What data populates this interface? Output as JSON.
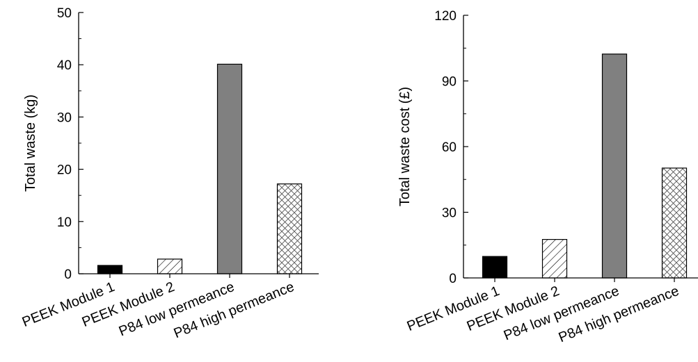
{
  "chart_data": [
    {
      "type": "bar",
      "categories": [
        "PEEK Module 1",
        "PEEK Module 2",
        "P84 low permeance",
        "P84 high permeance"
      ],
      "values": [
        1.6,
        2.8,
        40.1,
        17.2
      ],
      "ylabel": "Total waste (kg)",
      "xlabel": "",
      "ylim": [
        0,
        50
      ],
      "yticks": [
        0,
        10,
        20,
        30,
        40,
        50
      ],
      "grid": false,
      "bar_styles": [
        "solid-black",
        "diagonal-hatch",
        "solid-gray",
        "crosshatch"
      ]
    },
    {
      "type": "bar",
      "categories": [
        "PEEK Module 1",
        "PEEK Module 2",
        "P84 low permeance",
        "P84 high permeance"
      ],
      "values": [
        9.8,
        17.6,
        102.3,
        50.2
      ],
      "ylabel": "Total waste cost (£)",
      "xlabel": "",
      "ylim": [
        0,
        120
      ],
      "yticks": [
        0,
        30,
        60,
        90,
        120
      ],
      "grid": false,
      "bar_styles": [
        "solid-black",
        "diagonal-hatch",
        "solid-gray",
        "crosshatch"
      ]
    }
  ],
  "colors": {
    "solid_black": "#000000",
    "solid_gray": "#808080",
    "hatch_stroke": "#000000",
    "crosshatch_stroke": "#555555"
  }
}
